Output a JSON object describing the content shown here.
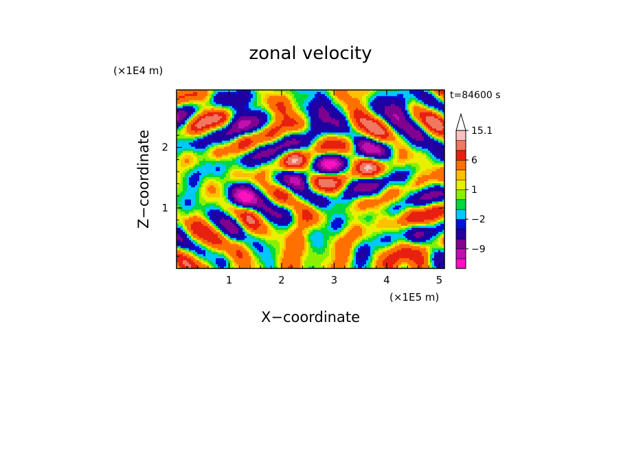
{
  "chart_data": {
    "type": "heatmap",
    "title": "zonal velocity",
    "xlabel": "X−coordinate",
    "ylabel": "Z−coordinate",
    "x_unit": "(×1E5 m)",
    "y_unit": "(×1E4 m)",
    "time_label": "t=84600 s",
    "xlim": [
      0.0,
      5.1
    ],
    "ylim": [
      0.0,
      2.95
    ],
    "x_ticks": [
      "1",
      "2",
      "3",
      "4",
      "5"
    ],
    "y_ticks": [
      "1",
      "2"
    ],
    "x_tick_values": [
      1,
      2,
      3,
      4,
      5
    ],
    "y_tick_values": [
      1,
      2
    ],
    "colorbar": {
      "levels": [
        -15,
        -12,
        -9,
        -6,
        -3,
        -2,
        -1,
        0,
        1,
        2,
        3,
        6,
        9,
        12,
        15.1
      ],
      "labels": [
        "15.1",
        "6",
        "1",
        "−2",
        "−9"
      ],
      "label_values": [
        15.1,
        6,
        1,
        -2,
        -9
      ],
      "colors": [
        "#ff10c0",
        "#c010b0",
        "#800090",
        "#2000a0",
        "#0010d0",
        "#00c8ff",
        "#00d840",
        "#88f000",
        "#e8f000",
        "#ffc000",
        "#ff7000",
        "#e82010",
        "#f07860",
        "#f8c0c0"
      ],
      "extend": "max"
    },
    "grid": false,
    "field_description": "contoured zonal velocity u(x,z) showing tilted internal wave bands radiating from the lower center-right"
  }
}
